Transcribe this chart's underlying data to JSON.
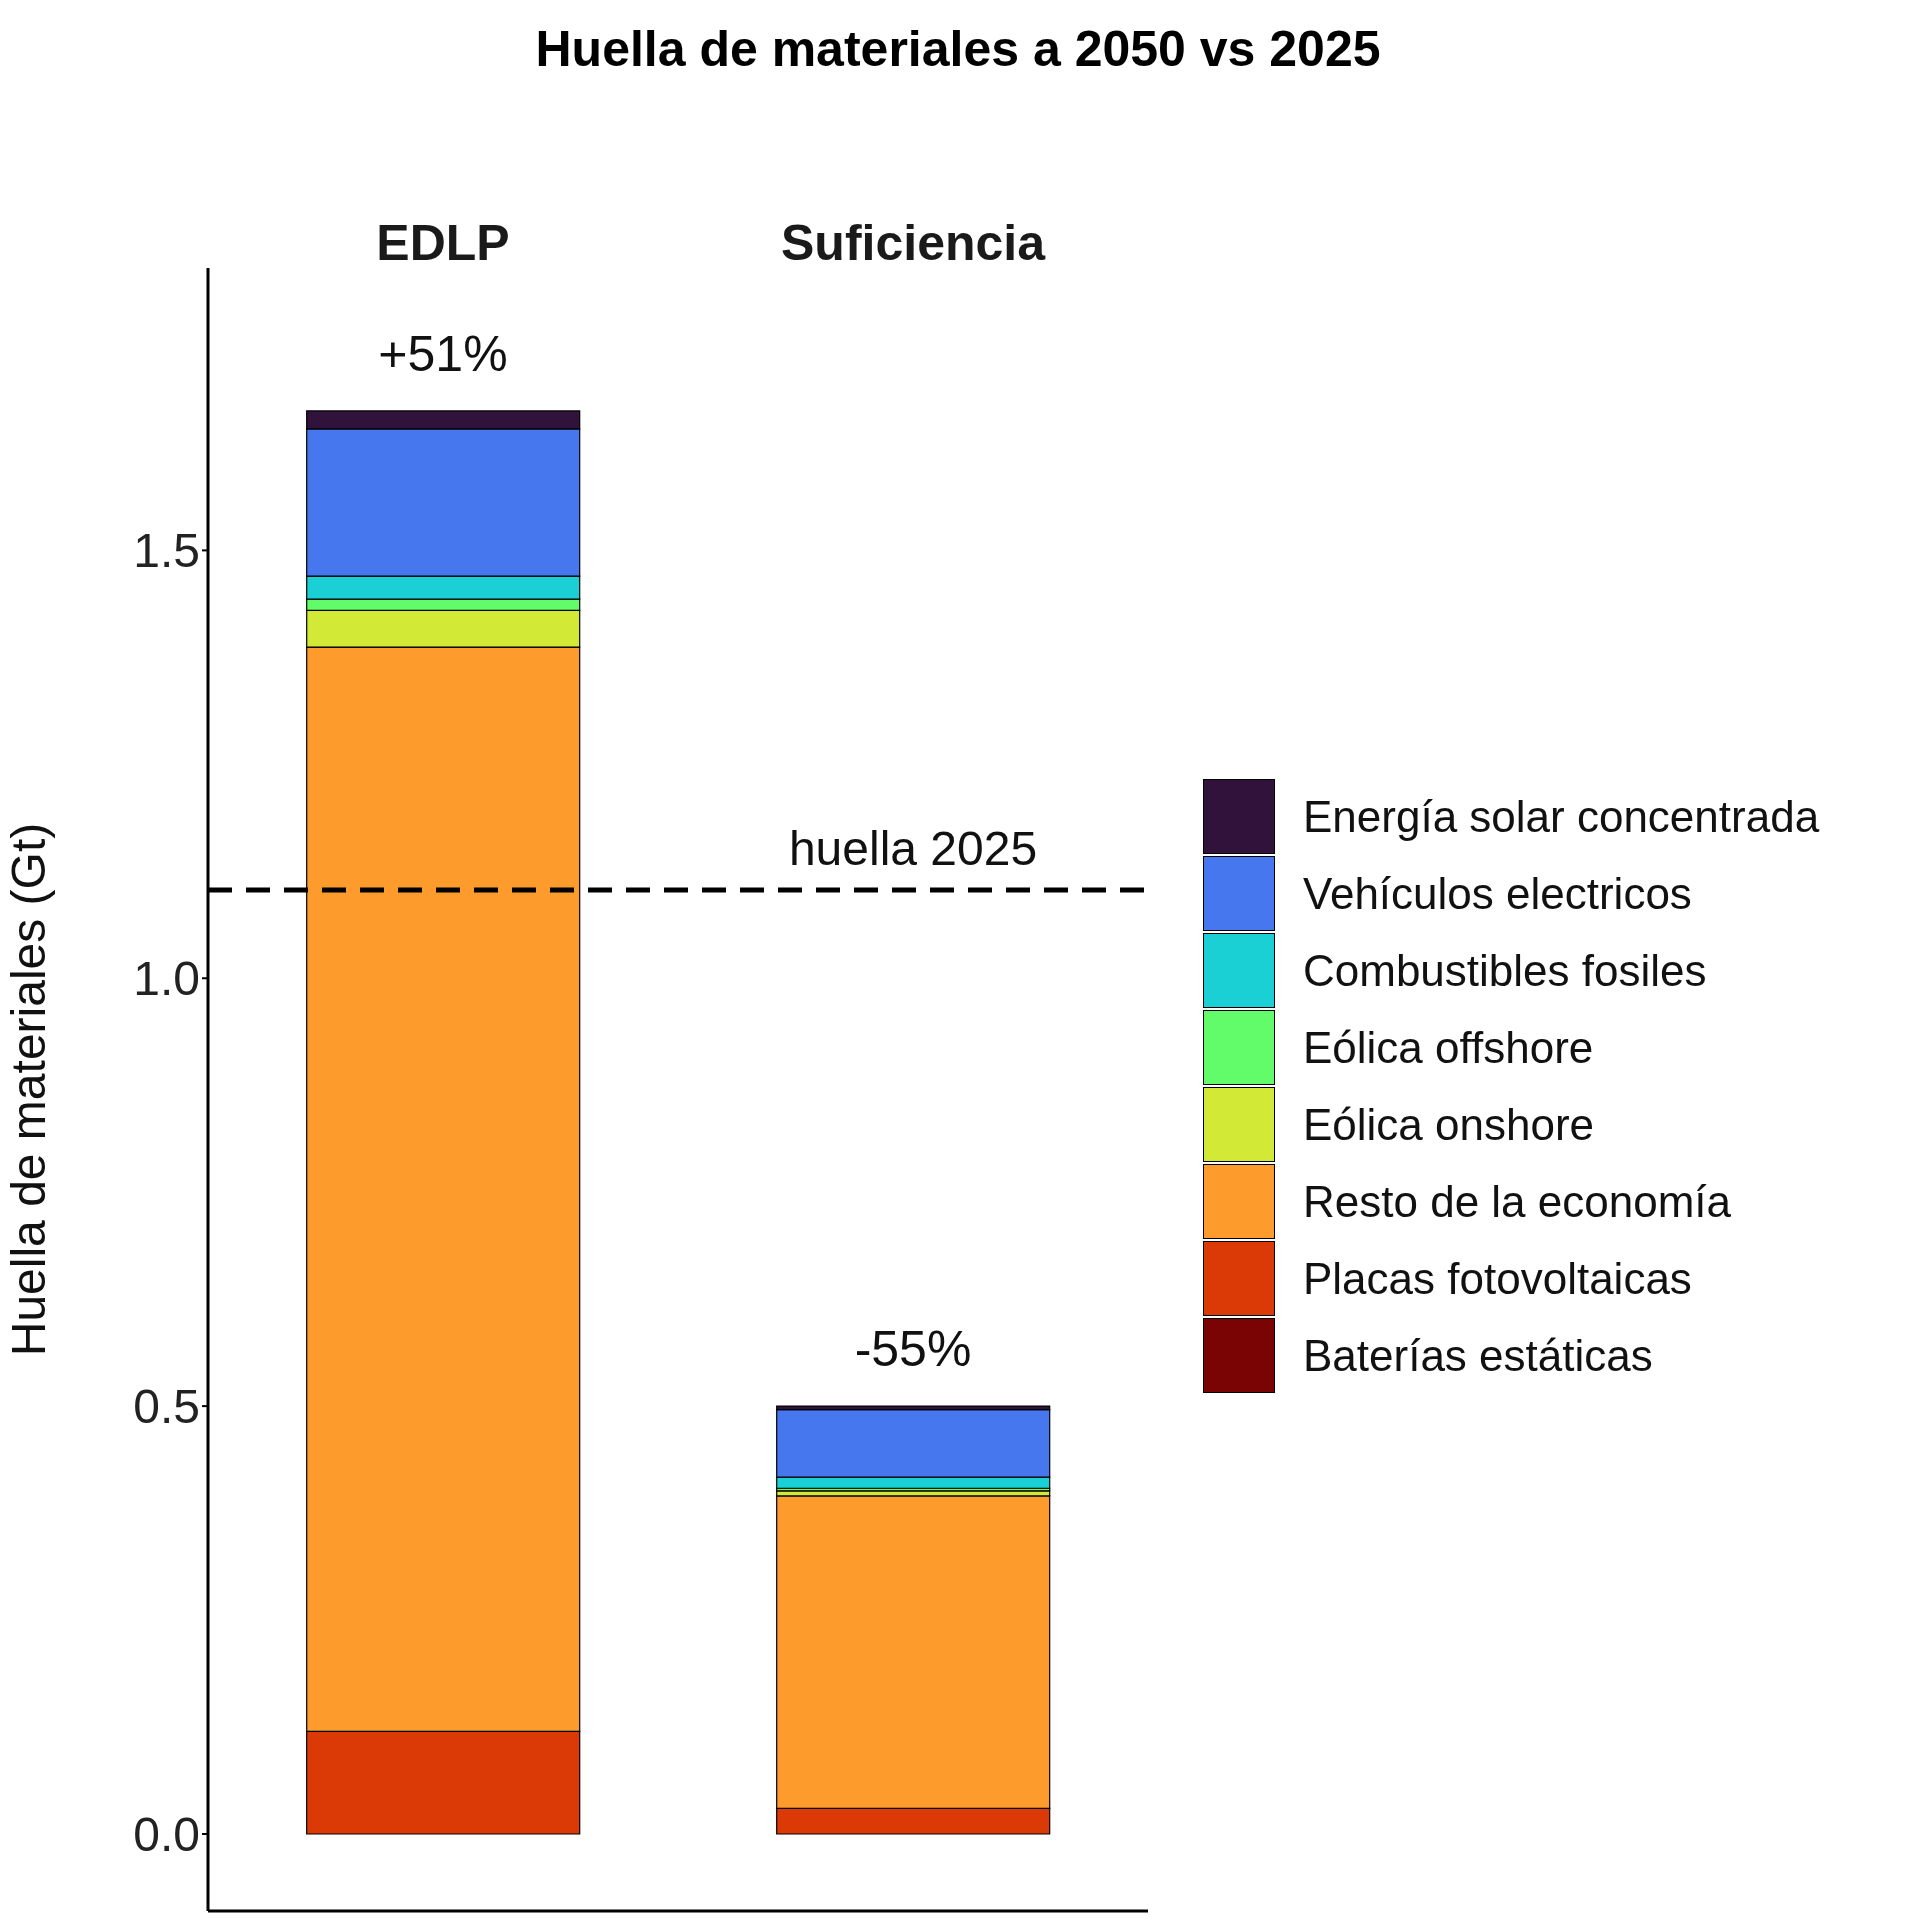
{
  "chart_data": {
    "type": "bar",
    "title": "Huella de materiales a 2050 vs 2025",
    "ylabel": "Huella de materiales (Gt)",
    "categories": [
      "EDLP",
      "Suficiencia"
    ],
    "stacked": true,
    "series": [
      {
        "name": "Baterías estáticas",
        "color": "#7a0403",
        "values": [
          0,
          0
        ]
      },
      {
        "name": "Placas fotovoltaicas",
        "color": "#db3a07",
        "values": [
          0.12,
          0.03
        ]
      },
      {
        "name": "Resto de la economía",
        "color": "#fe9b2d",
        "values": [
          1.267,
          0.365
        ]
      },
      {
        "name": "Eólica onshore",
        "color": "#d2e935",
        "values": [
          0.043,
          0.006
        ]
      },
      {
        "name": "Eólica offshore",
        "color": "#62fc6b",
        "values": [
          0.013,
          0.003
        ]
      },
      {
        "name": "Combustibles fosiles",
        "color": "#1bd0d5",
        "values": [
          0.027,
          0.013
        ]
      },
      {
        "name": "Vehículos electricos",
        "color": "#4777ef",
        "values": [
          0.172,
          0.079
        ]
      },
      {
        "name": "Energía solar concentrada",
        "color": "#30123b",
        "values": [
          0.021,
          0.004
        ]
      }
    ],
    "ylim": [
      -0.09,
      1.83
    ],
    "yticks": [
      {
        "value": 0,
        "label": "0.0"
      },
      {
        "value": 0.5,
        "label": "0.5"
      },
      {
        "value": 1,
        "label": "1.0"
      },
      {
        "value": 1.5,
        "label": "1.5"
      }
    ],
    "ref_lines": [
      {
        "axis": "y",
        "value": 1.103,
        "label": "huella 2025",
        "color": "#000000",
        "line_style": "dashed"
      }
    ],
    "annotations": [
      {
        "text": "+51%",
        "x": "EDLP",
        "y": 1.663
      },
      {
        "text": "-55%",
        "x": "Suficiencia",
        "y": 0.5
      }
    ],
    "grid": false,
    "legend": "right"
  }
}
